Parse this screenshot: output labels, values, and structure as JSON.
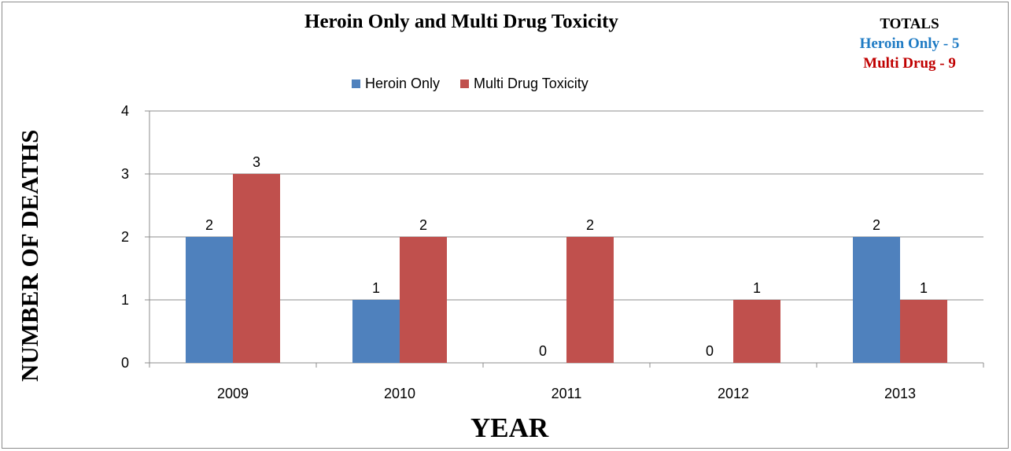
{
  "chart_data": {
    "type": "bar",
    "title": "Heroin Only and Multi Drug Toxicity",
    "xlabel": "YEAR",
    "ylabel": "NUMBER OF DEATHS",
    "categories": [
      "2009",
      "2010",
      "2011",
      "2012",
      "2013"
    ],
    "series": [
      {
        "name": "Heroin Only",
        "color": "#4f81bd",
        "values": [
          2,
          1,
          0,
          0,
          2
        ]
      },
      {
        "name": "Multi Drug Toxicity",
        "color": "#c0504d",
        "values": [
          3,
          2,
          2,
          1,
          1
        ]
      }
    ],
    "ylim": [
      0,
      4
    ],
    "yticks": [
      "0",
      "1",
      "2",
      "3",
      "4"
    ],
    "grid": true,
    "legend_position": "top"
  },
  "totals": {
    "heading": "TOTALS",
    "heroin_line": "Heroin Only - 5",
    "multi_line": "Multi Drug - 9",
    "heroin_color": "#1f7bc4",
    "multi_color": "#c00000"
  }
}
